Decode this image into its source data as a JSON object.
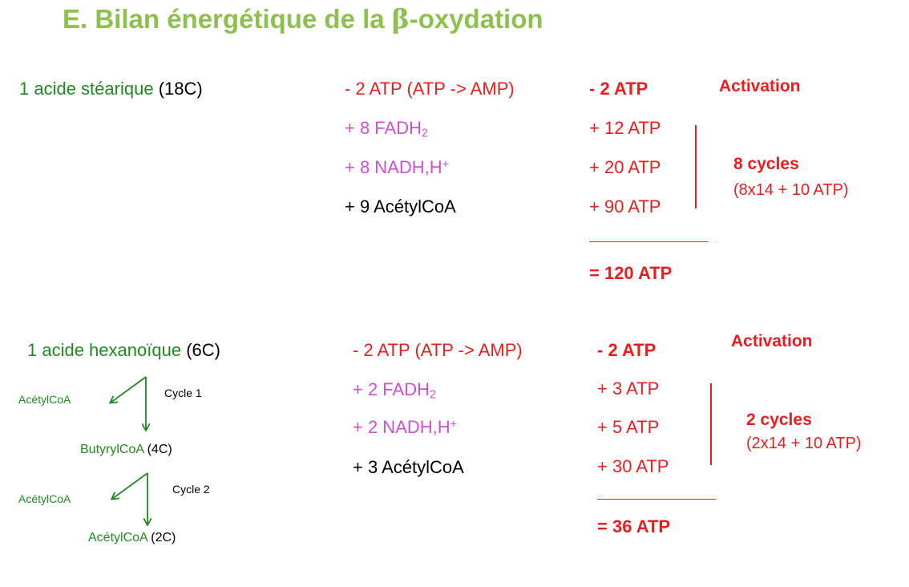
{
  "title": {
    "prefix": "E. Bilan énergétique de la ",
    "beta": "β",
    "suffix": "-oxydation"
  },
  "section1": {
    "acid_name": "1 acide stéarique",
    "acid_carbons": "(18C)",
    "col1": {
      "activation": "- 2 ATP   (ATP -> AMP)",
      "fadh_base": "+ 8 FADH",
      "fadh_sub": "2",
      "nadh_base": "+ 8 NADH,H",
      "nadh_sup": "+",
      "acetyl": "+ 9 AcétylCoA"
    },
    "col2": {
      "activation": "- 2 ATP",
      "fadh": "+ 12 ATP",
      "nadh": "+ 20 ATP",
      "acetyl": "+ 90 ATP",
      "total": "= 120 ATP"
    },
    "activation_label": "Activation",
    "cycles_label": "8 cycles",
    "cycles_formula": "(8x14 + 10 ATP)"
  },
  "section2": {
    "acid_name": "1 acide hexanoïque",
    "acid_carbons": "(6C)",
    "diagram": {
      "acetyl_out1": "AcétylCoA",
      "cycle1": "Cycle 1",
      "butyryl_name": "ButyrylCoA",
      "butyryl_carbons": "(4C)",
      "acetyl_out2": "AcétylCoA",
      "cycle2": "Cycle 2",
      "acetyl_final_name": "AcétylCoA",
      "acetyl_final_carbons": "(2C)"
    },
    "col1": {
      "activation": "- 2 ATP (ATP -> AMP)",
      "fadh_base": "+ 2 FADH",
      "fadh_sub": "2",
      "nadh_base": "+ 2 NADH,H",
      "nadh_sup": "+",
      "acetyl": "+ 3 AcétylCoA"
    },
    "col2": {
      "activation": "- 2 ATP",
      "fadh": "+ 3 ATP",
      "nadh": "+ 5 ATP",
      "acetyl": "+ 30 ATP",
      "total": "= 36 ATP"
    },
    "activation_label": "Activation",
    "cycles_label": "2 cycles",
    "cycles_formula": "(2x14 + 10 ATP)"
  },
  "colors": {
    "title": "#8dc14e",
    "green": "#1f8a1f",
    "red": "#ee1c1c",
    "magenta": "#cf4fcf"
  }
}
